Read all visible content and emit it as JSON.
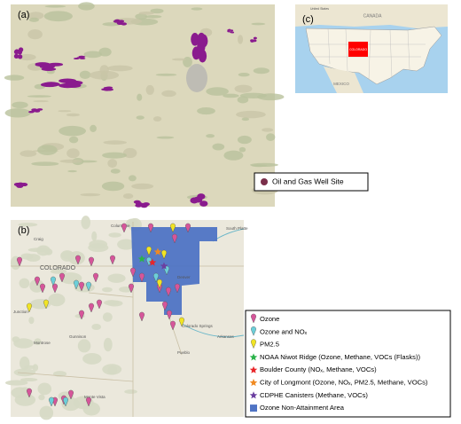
{
  "panel_a": {
    "label": "(a)",
    "legend": "Oil and Gas Well Site"
  },
  "panel_b": {
    "label": "(b)",
    "places": [
      "Columbine",
      "Craig",
      "COLORADO",
      "Denver",
      "Junction",
      "Montrose",
      "Gunnison",
      "Colorado Springs",
      "Pueblo",
      "Monte Vista",
      "South Platte",
      "Arkansas"
    ],
    "legend": [
      "Ozone",
      "Ozone and NOₓ",
      "PM2.5",
      "NOAA Niwot Ridge (Ozone, Methane, VOCs (Flasks))",
      "Boulder County (NOₓ, Methane, VOCs)",
      "City of Longmont (Ozone, NOₓ, PM2.5, Methane, VOCs)",
      "CDPHE Canisters (Methane, VOCs)",
      "Ozone Non-Attainment Area"
    ]
  },
  "panel_c": {
    "label": "(c)",
    "places": [
      "CANADA",
      "COLORADO",
      "MEXICO",
      "United States"
    ]
  }
}
